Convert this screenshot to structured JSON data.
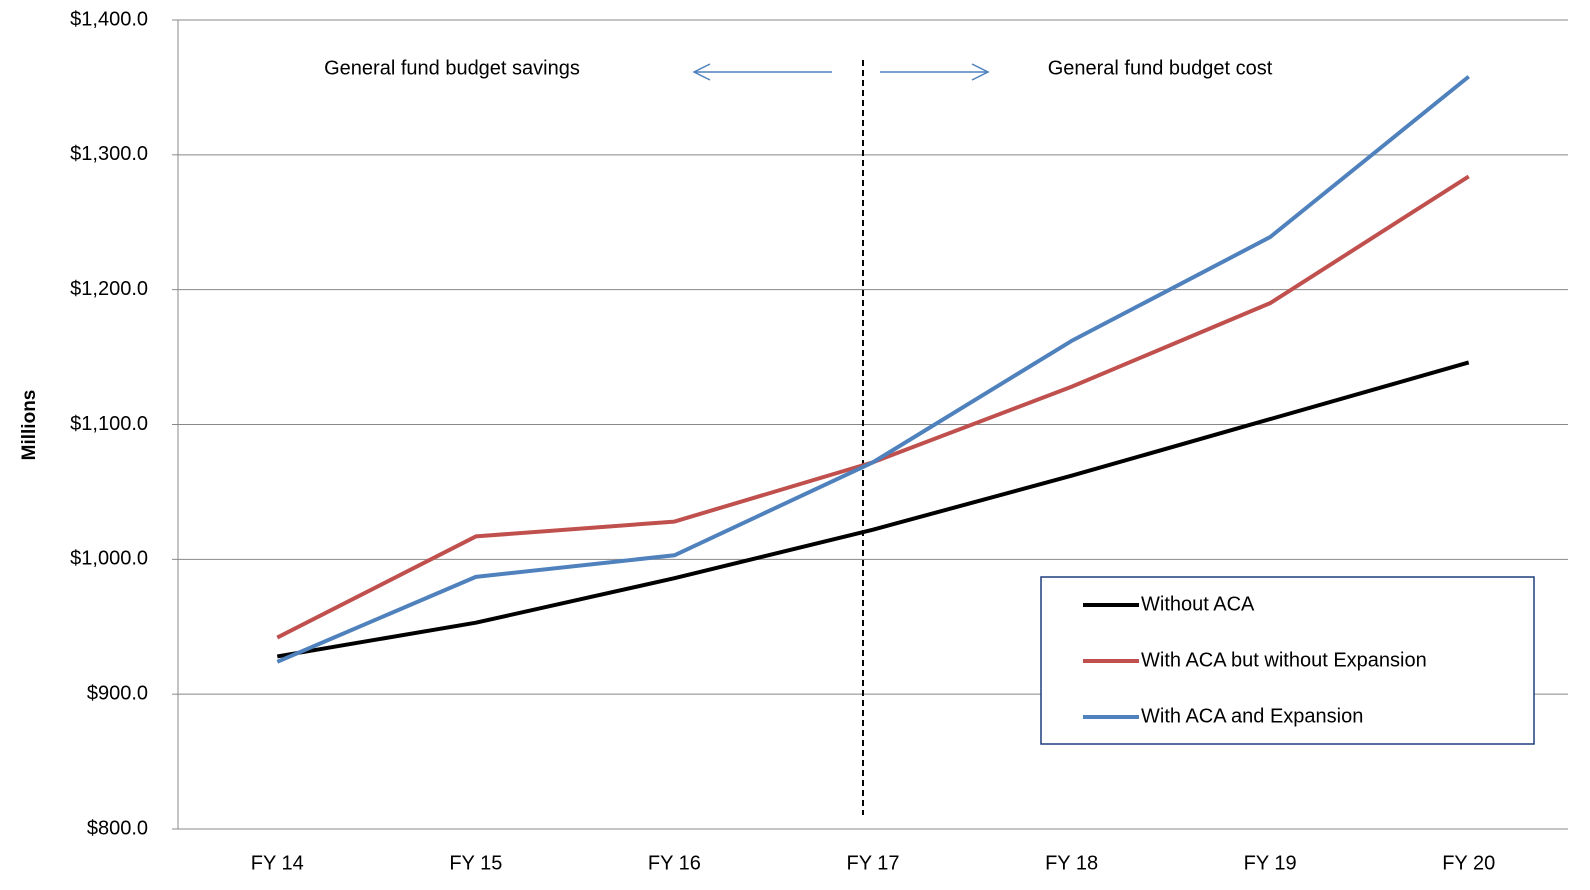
{
  "chart_data": {
    "type": "line",
    "y_label": "Millions",
    "annotations": [
      "General fund budget savings",
      "General fund budget cost"
    ],
    "categories": [
      "FY 14",
      "FY 15",
      "FY 16",
      "FY 17",
      "FY 18",
      "FY 19",
      "FY 20"
    ],
    "series": [
      {
        "name": "Without ACA",
        "color": "#000000",
        "values": [
          928,
          953,
          986,
          1022,
          1062,
          1104,
          1146
        ]
      },
      {
        "name": "With ACA but without Expansion",
        "color": "#c0504d",
        "values": [
          942,
          1017,
          1028,
          1072,
          1128,
          1190,
          1284
        ]
      },
      {
        "name": "With ACA and Expansion",
        "color": "#4f81bd",
        "values": [
          924,
          987,
          1003,
          1072,
          1162,
          1239,
          1358
        ]
      }
    ],
    "ylim": [
      800,
      1400
    ],
    "yticks": [
      {
        "value": 800,
        "label": "$800.0"
      },
      {
        "value": 900,
        "label": "$900.0"
      },
      {
        "value": 1000,
        "label": "$1,000.0"
      },
      {
        "value": 1100,
        "label": "$1,100.0"
      },
      {
        "value": 1200,
        "label": "$1,200.0"
      },
      {
        "value": 1300,
        "label": "$1,300.0"
      },
      {
        "value": 1400,
        "label": "$1,400.0"
      }
    ],
    "grid": true,
    "legend": "lower right"
  }
}
